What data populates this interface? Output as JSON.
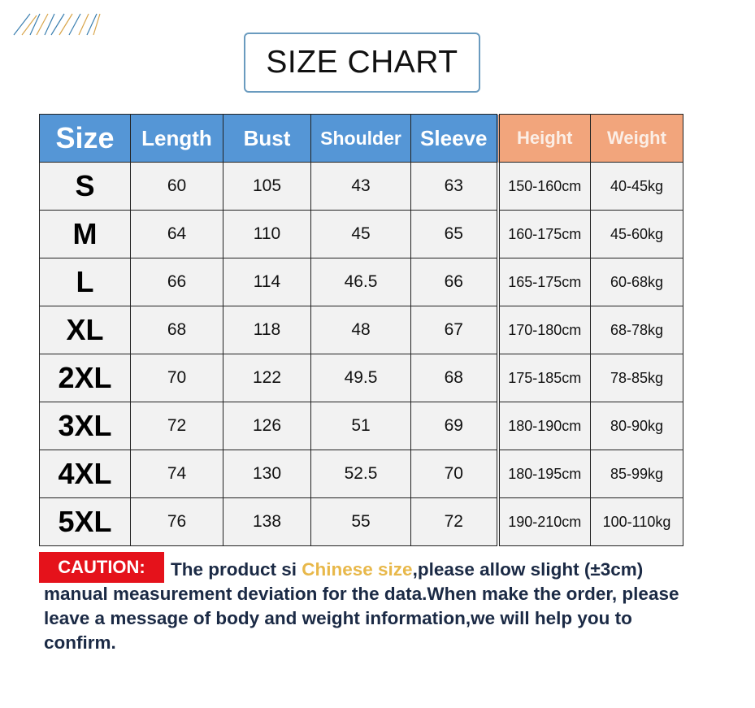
{
  "title": "SIZE CHART",
  "colors": {
    "header_blue": "#5596d6",
    "header_orange": "#f2a57c",
    "caution_red": "#e5121b",
    "highlight_gold": "#e8b84a",
    "text_navy": "#1b2a45"
  },
  "table": {
    "headers": [
      "Size",
      "Length",
      "Bust",
      "Shoulder",
      "Sleeve",
      "Height",
      "Weight"
    ],
    "rows": [
      [
        "S",
        "60",
        "105",
        "43",
        "63",
        "150-160cm",
        "40-45kg"
      ],
      [
        "M",
        "64",
        "110",
        "45",
        "65",
        "160-175cm",
        "45-60kg"
      ],
      [
        "L",
        "66",
        "114",
        "46.5",
        "66",
        "165-175cm",
        "60-68kg"
      ],
      [
        "XL",
        "68",
        "118",
        "48",
        "67",
        "170-180cm",
        "68-78kg"
      ],
      [
        "2XL",
        "70",
        "122",
        "49.5",
        "68",
        "175-185cm",
        "78-85kg"
      ],
      [
        "3XL",
        "72",
        "126",
        "51",
        "69",
        "180-190cm",
        "80-90kg"
      ],
      [
        "4XL",
        "74",
        "130",
        "52.5",
        "70",
        "180-195cm",
        "85-99kg"
      ],
      [
        "5XL",
        "76",
        "138",
        "55",
        "72",
        "190-210cm",
        "100-110kg"
      ]
    ]
  },
  "caution": {
    "label": "CAUTION:",
    "text_before": "The product si ",
    "highlight": "Chinese size",
    "text_after": ",please allow slight (±3cm) manual measurement deviation for the data.When make the order, please leave a message of body and weight information,we will help you to confirm."
  }
}
